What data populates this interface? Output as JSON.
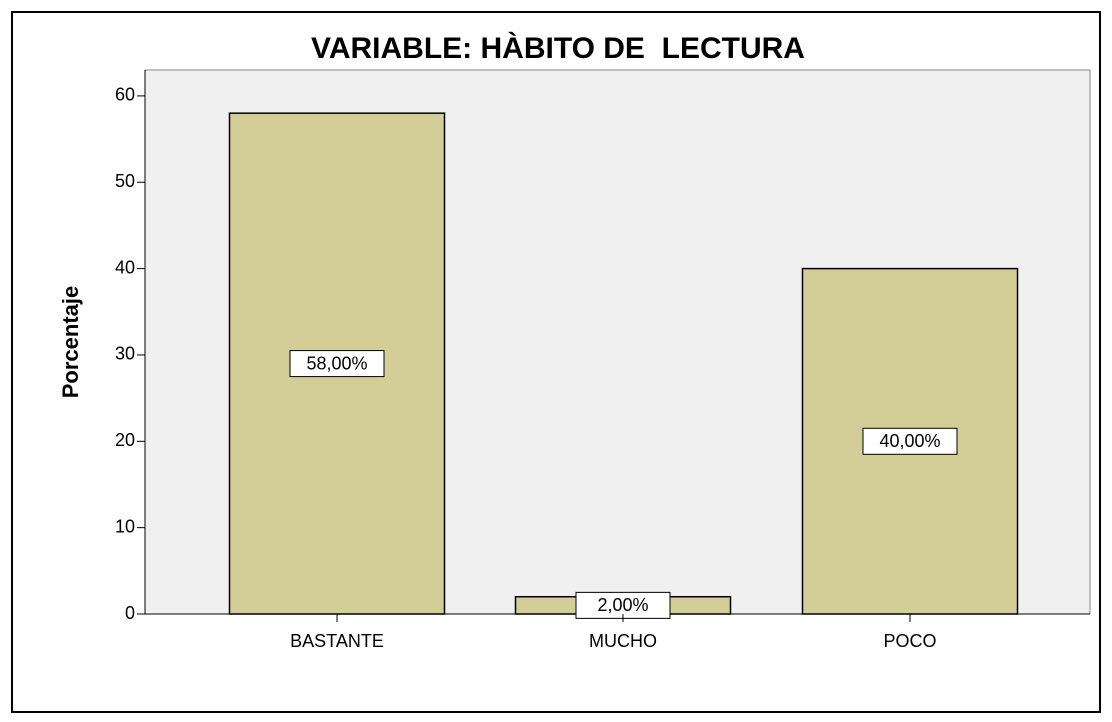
{
  "chart_data": {
    "type": "bar",
    "title": "VARIABLE: HÀBITO DE  LECTURA",
    "y_label": "Porcentaje",
    "categories": [
      "BASTANTE",
      "MUCHO",
      "POCO"
    ],
    "values": [
      58,
      2,
      40
    ],
    "value_labels": [
      "58,00%",
      "2,00%",
      "40,00%"
    ],
    "color": "#d3ce97",
    "ylim": [
      0,
      63
    ],
    "yticks": [
      0,
      10,
      20,
      30,
      40,
      50,
      60
    ],
    "grid": false
  }
}
